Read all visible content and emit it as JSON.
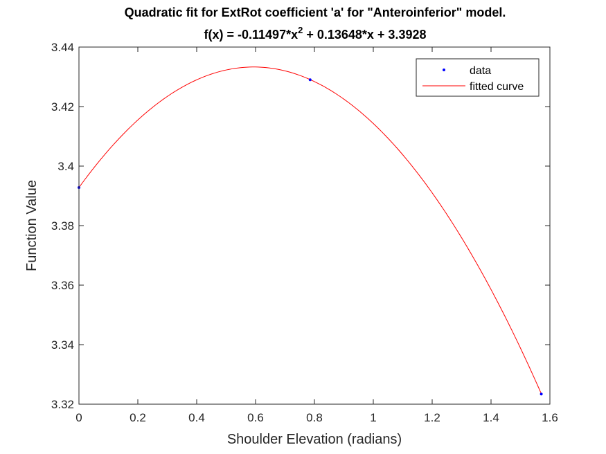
{
  "chart_data": {
    "type": "line",
    "title_line1": "Quadratic fit for ExtRot coefficient 'a' for \"Anteroinferior\" model.",
    "title_line2_prefix": "f(x) = -0.11497*x",
    "title_line2_sup": "2",
    "title_line2_suffix": " + 0.13648*x + 3.3928",
    "xlabel": "Shoulder Elevation (radians)",
    "ylabel": "Function Value",
    "xlim": [
      0,
      1.6
    ],
    "ylim": [
      3.32,
      3.44
    ],
    "xticks": [
      0,
      0.2,
      0.4,
      0.6,
      0.8,
      1,
      1.2,
      1.4,
      1.6
    ],
    "xtick_labels": [
      "0",
      "0.2",
      "0.4",
      "0.6",
      "0.8",
      "1",
      "1.2",
      "1.4",
      "1.6"
    ],
    "yticks": [
      3.32,
      3.34,
      3.36,
      3.38,
      3.4,
      3.42,
      3.44
    ],
    "ytick_labels": [
      "3.32",
      "3.34",
      "3.36",
      "3.38",
      "3.4",
      "3.42",
      "3.44"
    ],
    "legend_position": "top-right",
    "series": [
      {
        "name": "data",
        "style": "markers",
        "color": "#0000ff",
        "x": [
          0,
          0.7854,
          1.5708
        ],
        "y": [
          3.3928,
          3.429,
          3.3234
        ]
      },
      {
        "name": "fitted curve",
        "style": "line",
        "color": "#ff0000",
        "coefficients": [
          -0.11497,
          0.13648,
          3.3928
        ],
        "x_range": [
          0,
          1.5708
        ]
      }
    ]
  }
}
